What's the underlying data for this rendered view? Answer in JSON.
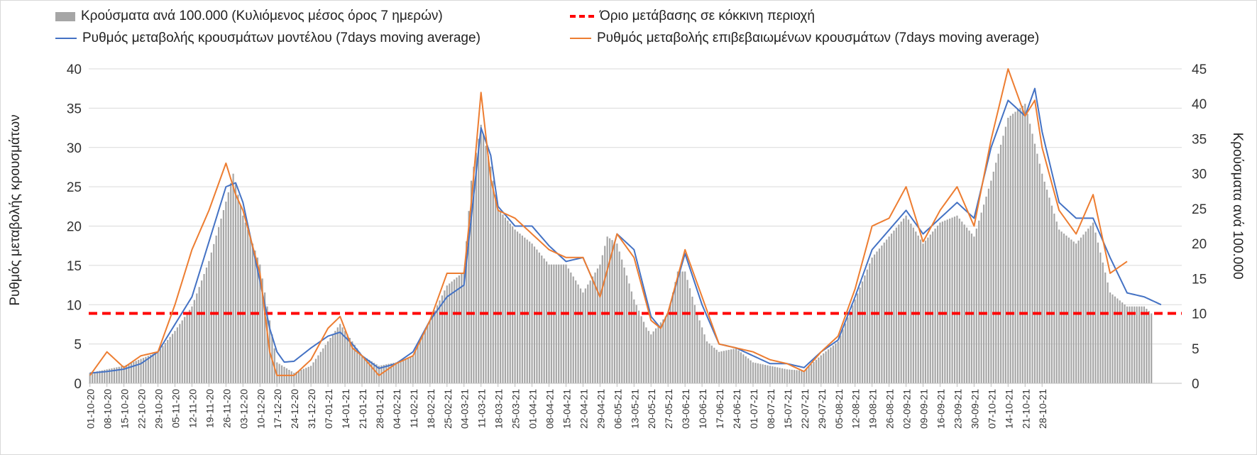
{
  "legend": {
    "bars": "Κρούσματα ανά 100.000 (Κυλιόμενος μέσος όρος 7 ημερών)",
    "threshold": "Όριο μετάβασης σε κόκκινη περιοχή",
    "model": "Ρυθμός μεταβολής κρουσμάτων μοντέλου (7days moving average)",
    "confirmed": "Ρυθμός μεταβολής επιβεβαιωμένων κρουσμάτων (7days moving average)"
  },
  "colors": {
    "bars": "#a6a6a6",
    "model": "#4472c4",
    "confirmed": "#ed7d31",
    "threshold": "#ff0000",
    "grid": "#d9d9d9"
  },
  "chart_data": {
    "type": "bar",
    "title": "",
    "xlabel": "",
    "ylabel": "Ρυθμός μεταβολής κρουσμάτων",
    "y2label": "Κρούσματα ανά 100.000",
    "ylim": [
      0,
      40
    ],
    "yticks": [
      0,
      5,
      10,
      15,
      20,
      25,
      30,
      35,
      40
    ],
    "y2lim": [
      0,
      45
    ],
    "y2ticks": [
      0,
      5,
      10,
      15,
      20,
      25,
      30,
      35,
      40,
      45
    ],
    "grid": true,
    "legend_position": "top",
    "x_tick_labels": [
      "01-10-20",
      "08-10-20",
      "15-10-20",
      "22-10-20",
      "29-10-20",
      "05-11-20",
      "12-11-20",
      "19-11-20",
      "26-11-20",
      "03-12-20",
      "10-12-20",
      "17-12-20",
      "24-12-20",
      "31-12-20",
      "07-01-21",
      "14-01-21",
      "21-01-21",
      "28-01-21",
      "04-02-21",
      "11-02-21",
      "18-02-21",
      "25-02-21",
      "04-03-21",
      "11-03-21",
      "18-03-21",
      "25-03-21",
      "01-04-21",
      "08-04-21",
      "15-04-21",
      "22-04-21",
      "29-04-21",
      "06-05-21",
      "13-05-21",
      "20-05-21",
      "27-05-21",
      "03-06-21",
      "10-06-21",
      "17-06-21",
      "24-06-21",
      "01-07-21",
      "08-07-21",
      "15-07-21",
      "22-07-21",
      "29-07-21",
      "05-08-21",
      "12-08-21",
      "19-08-21",
      "26-08-21",
      "02-09-21",
      "09-09-21",
      "16-09-21",
      "23-09-21",
      "30-09-21",
      "07-10-21",
      "14-10-21",
      "21-10-21",
      "28-10-21"
    ],
    "series": [
      {
        "name": "Κρούσματα ανά 100.000 (Κυλιόμενος μέσος όρος 7 ημερών)",
        "type": "bar",
        "axis": "right",
        "keypoints_day_value": [
          [
            0,
            1.5
          ],
          [
            7,
            2
          ],
          [
            14,
            2.5
          ],
          [
            21,
            3.5
          ],
          [
            28,
            4.5
          ],
          [
            35,
            7.5
          ],
          [
            42,
            11
          ],
          [
            49,
            17.5
          ],
          [
            56,
            26
          ],
          [
            59,
            30
          ],
          [
            63,
            24
          ],
          [
            70,
            17
          ],
          [
            74,
            9
          ],
          [
            77,
            3
          ],
          [
            84,
            1.5
          ],
          [
            91,
            2.5
          ],
          [
            98,
            6
          ],
          [
            103,
            8.5
          ],
          [
            108,
            6
          ],
          [
            112,
            4
          ],
          [
            119,
            2.5
          ],
          [
            126,
            3
          ],
          [
            133,
            4
          ],
          [
            140,
            9
          ],
          [
            147,
            14
          ],
          [
            154,
            16
          ],
          [
            157,
            29
          ],
          [
            161,
            37
          ],
          [
            165,
            31
          ],
          [
            168,
            25
          ],
          [
            175,
            22
          ],
          [
            182,
            20
          ],
          [
            189,
            17
          ],
          [
            196,
            17
          ],
          [
            203,
            13
          ],
          [
            210,
            17
          ],
          [
            213,
            21
          ],
          [
            217,
            20
          ],
          [
            224,
            12
          ],
          [
            229,
            8
          ],
          [
            231,
            7
          ],
          [
            238,
            10
          ],
          [
            242,
            16
          ],
          [
            245,
            16
          ],
          [
            250,
            10
          ],
          [
            254,
            6
          ],
          [
            259,
            4.5
          ],
          [
            266,
            5
          ],
          [
            273,
            3
          ],
          [
            280,
            2.5
          ],
          [
            287,
            2
          ],
          [
            294,
            1.8
          ],
          [
            301,
            4
          ],
          [
            308,
            6
          ],
          [
            315,
            12
          ],
          [
            322,
            18
          ],
          [
            329,
            21
          ],
          [
            336,
            24
          ],
          [
            343,
            20
          ],
          [
            350,
            23
          ],
          [
            357,
            24
          ],
          [
            364,
            21
          ],
          [
            371,
            29
          ],
          [
            378,
            38
          ],
          [
            385,
            40
          ],
          [
            392,
            30
          ],
          [
            399,
            22
          ],
          [
            406,
            20
          ],
          [
            413,
            23
          ],
          [
            420,
            13
          ],
          [
            427,
            11
          ],
          [
            434,
            11
          ],
          [
            437,
            10
          ]
        ]
      },
      {
        "name": "Ρυθμός μεταβολής κρουσμάτων μοντέλου (7days moving average)",
        "type": "line",
        "axis": "left",
        "keypoints_day_value": [
          [
            0,
            1.3
          ],
          [
            7,
            1.5
          ],
          [
            14,
            1.8
          ],
          [
            21,
            2.5
          ],
          [
            28,
            4
          ],
          [
            35,
            7.5
          ],
          [
            42,
            11
          ],
          [
            49,
            18
          ],
          [
            56,
            25
          ],
          [
            60,
            25.5
          ],
          [
            63,
            23
          ],
          [
            70,
            13
          ],
          [
            74,
            7
          ],
          [
            77,
            4
          ],
          [
            80,
            2.7
          ],
          [
            84,
            2.8
          ],
          [
            91,
            4.5
          ],
          [
            98,
            6
          ],
          [
            103,
            6.5
          ],
          [
            108,
            5
          ],
          [
            112,
            3.5
          ],
          [
            119,
            1.9
          ],
          [
            126,
            2.5
          ],
          [
            133,
            4
          ],
          [
            140,
            8
          ],
          [
            147,
            11
          ],
          [
            154,
            12.5
          ],
          [
            161,
            32.5
          ],
          [
            165,
            29
          ],
          [
            168,
            22.5
          ],
          [
            175,
            20
          ],
          [
            182,
            20
          ],
          [
            189,
            17.5
          ],
          [
            196,
            15.5
          ],
          [
            203,
            16
          ],
          [
            210,
            11
          ],
          [
            217,
            19
          ],
          [
            224,
            17
          ],
          [
            231,
            8.5
          ],
          [
            235,
            7
          ],
          [
            238,
            9
          ],
          [
            245,
            16.5
          ],
          [
            252,
            10
          ],
          [
            259,
            5
          ],
          [
            266,
            4.5
          ],
          [
            273,
            3.5
          ],
          [
            280,
            2.5
          ],
          [
            287,
            2.5
          ],
          [
            294,
            2
          ],
          [
            301,
            4
          ],
          [
            308,
            5.5
          ],
          [
            315,
            11
          ],
          [
            322,
            17
          ],
          [
            329,
            19.5
          ],
          [
            336,
            22
          ],
          [
            343,
            19
          ],
          [
            350,
            21
          ],
          [
            357,
            23
          ],
          [
            364,
            21
          ],
          [
            371,
            30
          ],
          [
            378,
            36
          ],
          [
            385,
            34
          ],
          [
            389,
            37.5
          ],
          [
            392,
            32
          ],
          [
            399,
            23
          ],
          [
            406,
            21
          ],
          [
            413,
            21
          ],
          [
            420,
            16
          ],
          [
            427,
            11.5
          ],
          [
            434,
            11
          ],
          [
            441,
            10
          ]
        ]
      },
      {
        "name": "Ρυθμός μεταβολής επιβεβαιωμένων κρουσμάτων (7days moving average)",
        "type": "line",
        "axis": "left",
        "keypoints_day_value": [
          [
            0,
            1
          ],
          [
            7,
            4
          ],
          [
            14,
            2
          ],
          [
            21,
            3.5
          ],
          [
            28,
            4
          ],
          [
            35,
            10
          ],
          [
            42,
            17
          ],
          [
            49,
            22
          ],
          [
            56,
            28
          ],
          [
            60,
            24
          ],
          [
            63,
            22
          ],
          [
            70,
            14
          ],
          [
            74,
            4
          ],
          [
            77,
            1
          ],
          [
            84,
            1
          ],
          [
            91,
            3
          ],
          [
            98,
            7
          ],
          [
            103,
            8.5
          ],
          [
            108,
            4.5
          ],
          [
            112,
            3.5
          ],
          [
            119,
            1
          ],
          [
            126,
            2.5
          ],
          [
            133,
            3.5
          ],
          [
            140,
            8
          ],
          [
            147,
            14
          ],
          [
            154,
            14
          ],
          [
            157,
            23
          ],
          [
            161,
            37
          ],
          [
            165,
            26
          ],
          [
            168,
            22
          ],
          [
            175,
            21
          ],
          [
            182,
            19
          ],
          [
            189,
            17
          ],
          [
            196,
            16
          ],
          [
            203,
            16
          ],
          [
            210,
            11
          ],
          [
            217,
            19
          ],
          [
            224,
            16
          ],
          [
            231,
            8
          ],
          [
            235,
            7
          ],
          [
            238,
            9
          ],
          [
            245,
            17
          ],
          [
            252,
            11
          ],
          [
            259,
            5
          ],
          [
            266,
            4.5
          ],
          [
            273,
            4
          ],
          [
            280,
            3
          ],
          [
            287,
            2.5
          ],
          [
            294,
            1.5
          ],
          [
            301,
            4
          ],
          [
            308,
            6
          ],
          [
            315,
            12
          ],
          [
            322,
            20
          ],
          [
            329,
            21
          ],
          [
            336,
            25
          ],
          [
            343,
            18
          ],
          [
            350,
            22
          ],
          [
            357,
            25
          ],
          [
            364,
            20
          ],
          [
            371,
            31
          ],
          [
            378,
            40
          ],
          [
            385,
            34
          ],
          [
            389,
            36
          ],
          [
            392,
            30
          ],
          [
            399,
            22
          ],
          [
            406,
            19
          ],
          [
            413,
            24
          ],
          [
            420,
            14
          ],
          [
            427,
            15.5
          ]
        ]
      },
      {
        "name": "Όριο μετάβασης σε κόκκινη περιοχή",
        "type": "line",
        "axis": "right",
        "constant_value": 10
      }
    ]
  }
}
